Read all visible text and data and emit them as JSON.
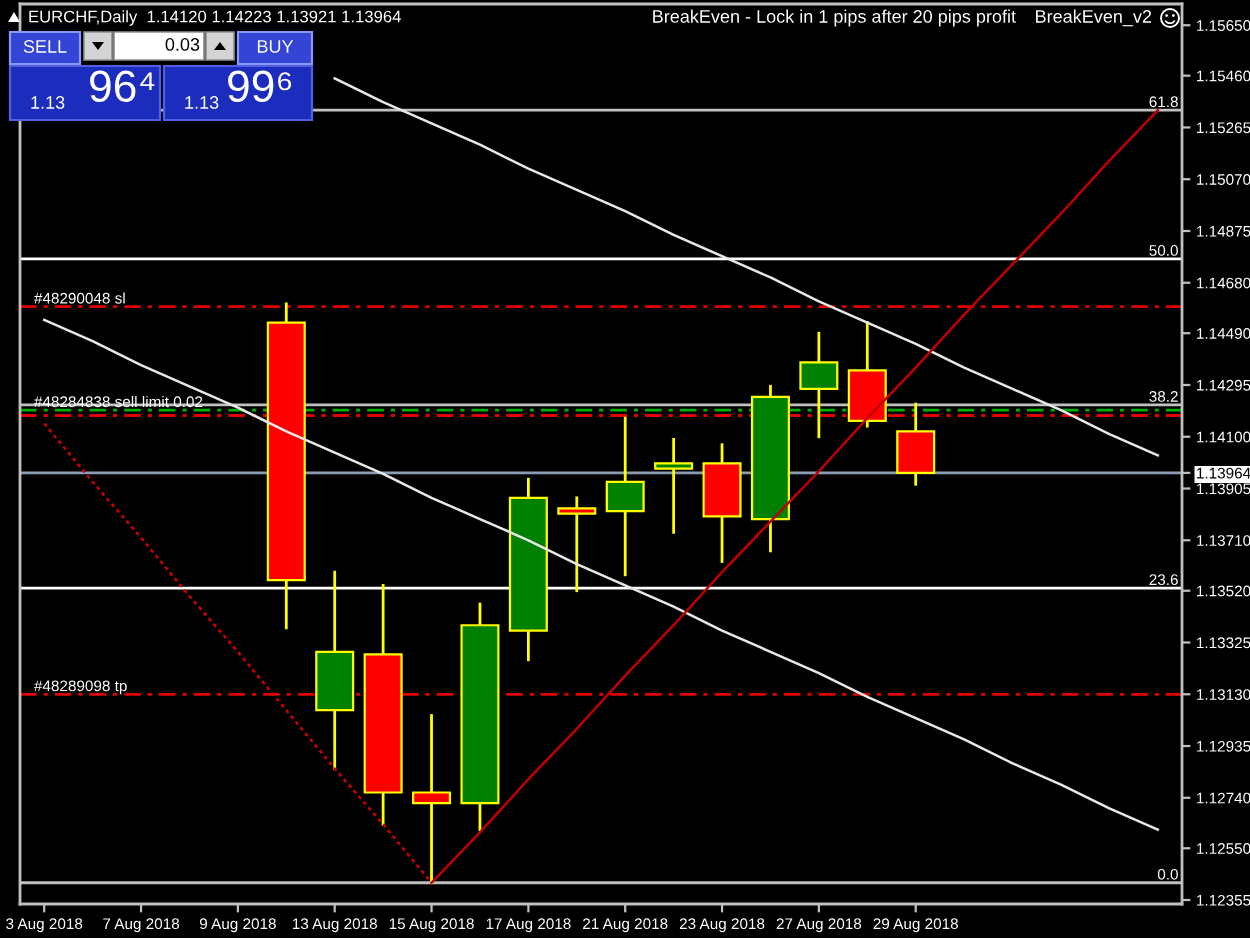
{
  "chart_data": {
    "type": "candlestick",
    "title": "EURCHF,Daily  1.14120 1.14223 1.13921 1.13964",
    "annotations": [
      "SELL",
      "0.03",
      "BUY",
      "1.13",
      "96⁴",
      "1.13",
      "99⁶",
      "BreakEven - Lock in 1 pips after 20 pips profit",
      "BreakEven_v2",
      {
        "text": "61.8",
        "y": 1.1533
      },
      {
        "text": "50.0",
        "y": 1.1477
      },
      {
        "text": "38.2",
        "y": 1.1422
      },
      {
        "text": "23.6",
        "y": 1.1353
      },
      {
        "text": "0.0",
        "y": 1.1242
      }
    ],
    "categories": [
      "3 Aug 2018",
      null,
      "7 Aug 2018",
      null,
      "9 Aug 2018",
      null,
      "13 Aug 2018",
      null,
      "15 Aug 2018",
      null,
      "17 Aug 2018",
      null,
      "21 Aug 2018",
      null,
      "23 Aug 2018",
      null,
      "27 Aug 2018",
      null,
      "29 Aug 2018",
      null,
      null,
      null,
      null,
      null
    ],
    "ohlc": [
      null,
      null,
      null,
      null,
      null,
      [
        1.1453,
        1.146,
        1.1338,
        1.1356
      ],
      [
        1.1307,
        1.1359,
        1.1285,
        1.1329
      ],
      [
        1.1328,
        1.1354,
        1.1264,
        1.1276
      ],
      [
        1.1276,
        1.1305,
        1.1242,
        1.1272
      ],
      [
        1.1272,
        1.1347,
        1.1262,
        1.1339
      ],
      [
        1.1337,
        1.1394,
        1.1326,
        1.1387
      ],
      [
        1.1383,
        1.1387,
        1.1352,
        1.1381
      ],
      [
        1.1382,
        1.1417,
        1.1358,
        1.1393
      ],
      [
        1.1398,
        1.1409,
        1.1374,
        1.14
      ],
      [
        1.14,
        1.1407,
        1.1363,
        1.138
      ],
      [
        1.1379,
        1.1429,
        1.1367,
        1.1425
      ],
      [
        1.1428,
        1.1449,
        1.141,
        1.1438
      ],
      [
        1.1435,
        1.1453,
        1.1414,
        1.1416
      ],
      [
        1.1412,
        1.14223,
        1.13921,
        1.13964
      ],
      null,
      null,
      null,
      null,
      null
    ],
    "colors": [
      null,
      null,
      null,
      null,
      null,
      "#ff0000",
      "#008000",
      "#ff0000",
      "#ff0000",
      "#008000",
      "#008000",
      "#ff0000",
      "#008000",
      "#008000",
      "#ff0000",
      "#008000",
      "#008000",
      "#ff0000",
      "#ff0000",
      null,
      null,
      null,
      null,
      null
    ],
    "color": "#ffff00",
    "series": [
      {
        "type": "line",
        "values": [
          null,
          null,
          null,
          null,
          null,
          null,
          1.1545,
          1.1536,
          1.1528,
          1.152,
          1.1511,
          1.1503,
          1.1495,
          1.1486,
          1.1478,
          1.147,
          1.1461,
          1.1453,
          1.1445,
          1.1436,
          1.1428,
          1.142,
          1.1411,
          1.1403
        ],
        "color": "#e8e8e8",
        "line_style": "solid"
      },
      {
        "type": "line",
        "values": [
          1.1454,
          1.1446,
          1.1437,
          1.1429,
          1.1421,
          1.1412,
          1.1404,
          1.1396,
          1.1387,
          1.1379,
          1.1371,
          1.1362,
          1.1354,
          1.1346,
          1.1337,
          1.1329,
          1.1321,
          1.1312,
          1.1304,
          1.1296,
          1.1287,
          1.1279,
          1.127,
          1.1262
        ],
        "color": "#e8e8e8",
        "line_style": "solid"
      },
      {
        "type": "line",
        "values": [
          1.1415,
          1.1393,
          1.1372,
          1.135,
          1.1329,
          1.1307,
          1.1285,
          1.1264,
          1.1242,
          null,
          null,
          null,
          null,
          null,
          null,
          null,
          null,
          null,
          null,
          null,
          null,
          null,
          null,
          null
        ],
        "color": "#d00000",
        "line_style": "dotted"
      },
      {
        "type": "line",
        "values": [
          null,
          null,
          null,
          null,
          null,
          null,
          null,
          null,
          1.1242,
          1.1261,
          1.1281,
          1.13,
          1.132,
          1.1339,
          1.1359,
          1.1378,
          1.1397,
          1.1417,
          1.1436,
          1.1456,
          1.1475,
          1.1494,
          1.1514,
          1.1533
        ],
        "color": "#c00000",
        "line_style": "solid"
      }
    ],
    "ylim": [
      1.1234,
      1.1573
    ],
    "yticks": [
      {
        "value": 1.1565,
        "label": "1.15650"
      },
      {
        "value": 1.1546,
        "label": "1.15460"
      },
      1.15265,
      {
        "value": 1.1507,
        "label": "1.15070"
      },
      1.14875,
      {
        "value": 1.1468,
        "label": "1.14680"
      },
      {
        "value": 1.1449,
        "label": "1.14490"
      },
      1.14295,
      {
        "value": 1.141,
        "label": "1.14100"
      },
      1.13964,
      1.13905,
      {
        "value": 1.1371,
        "label": "1.13710"
      },
      {
        "value": 1.1352,
        "label": "1.13520"
      },
      1.13325,
      {
        "value": 1.1313,
        "label": "1.13130"
      },
      1.12935,
      {
        "value": 1.1274,
        "label": "1.12740"
      },
      {
        "value": 1.1255,
        "label": "1.12550"
      },
      1.12355
    ],
    "ref_lines": [
      {
        "axis": "y",
        "value": 1.1533,
        "color": "#c0c0c0",
        "line_style": "solid"
      },
      {
        "axis": "y",
        "value": 1.1477,
        "color": "#ffffff",
        "line_style": "solid"
      },
      {
        "axis": "y",
        "value": 1.1422,
        "color": "#c0c0c0",
        "line_style": "solid"
      },
      {
        "axis": "y",
        "value": 1.1353,
        "color": "#ffffff",
        "line_style": "solid"
      },
      {
        "axis": "y",
        "value": 1.1242,
        "color": "#c0c0c0",
        "line_style": "solid"
      },
      {
        "axis": "y",
        "value": 1.1459,
        "label": "#48290048 sl",
        "color": "#e00000",
        "line_style": "dashed"
      },
      {
        "axis": "y",
        "value": 1.142,
        "label": "#48284838 sell limit 0.02",
        "color": "#00b000",
        "line_style": "dashed"
      },
      {
        "axis": "y",
        "value": 1.1418,
        "color": "#e00000",
        "line_style": "dashed"
      },
      {
        "axis": "y",
        "value": 1.1313,
        "label": "#48289098 tp",
        "color": "#e00000",
        "line_style": "dashed"
      },
      {
        "axis": "y",
        "value": 1.13964,
        "color": "#8c9cb4",
        "line_style": "solid"
      }
    ]
  }
}
